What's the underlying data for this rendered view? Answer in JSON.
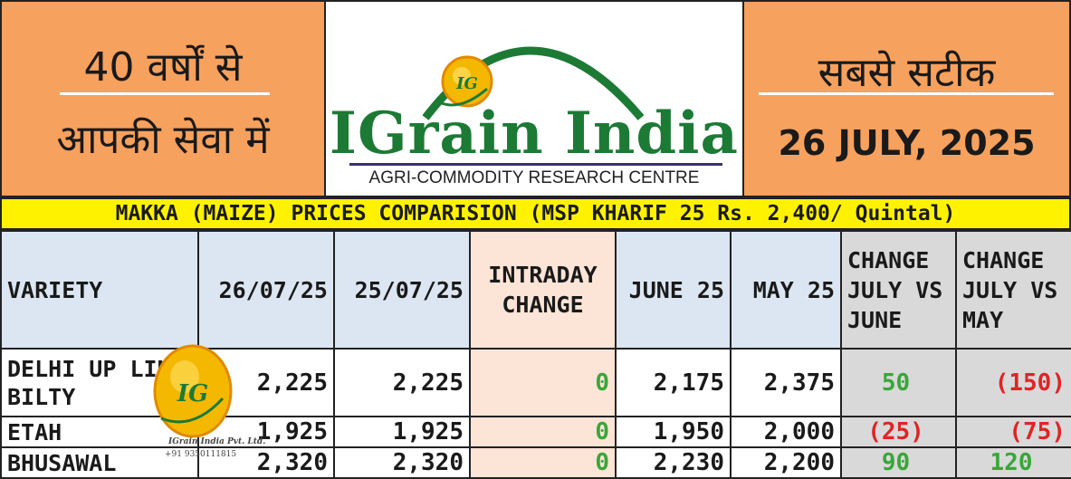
{
  "header": {
    "left_line1": "40 वर्षों से",
    "left_line2": "आपकी सेवा में",
    "right_line1": "सबसे सटीक",
    "date": "26 JULY, 2025"
  },
  "logo": {
    "badge_text": "IG",
    "title": "IGrain India",
    "subtitle": "AGRI-COMMODITY RESEARCH CENTRE"
  },
  "banner": "MAKKA (MAIZE) PRICES COMPARISION (MSP KHARIF 25 Rs. 2,400/ Quintal)",
  "table": {
    "headers": [
      "VARIETY",
      "26/07/25",
      "25/07/25",
      "INTRADAY CHANGE",
      "JUNE 25",
      "MAY 25",
      "CHANGE JULY VS JUNE",
      "CHANGE JULY VS MAY"
    ],
    "rows": [
      {
        "variety": "DELHI UP LINE BILTY",
        "d1": "2,225",
        "d2": "2,225",
        "intraday": "0",
        "june": "2,175",
        "may": "2,375",
        "chg_june": "50",
        "chg_may": "(150)"
      },
      {
        "variety": "ETAH",
        "d1": "1,925",
        "d2": "1,925",
        "intraday": "0",
        "june": "1,950",
        "may": "2,000",
        "chg_june": "(25)",
        "chg_may": "(75)"
      },
      {
        "variety": "BHUSAWAL",
        "d1": "2,320",
        "d2": "2,320",
        "intraday": "0",
        "june": "2,230",
        "may": "2,200",
        "chg_june": "90",
        "chg_may": "120"
      }
    ]
  },
  "watermark": {
    "badge_text": "IG",
    "company": "IGrain India Pvt. Ltd.",
    "phone": "+91 9350111815"
  },
  "colors": {
    "header_orange": "#f6a15e",
    "brand_green": "#1c7a35",
    "banner_yellow": "#fff200",
    "header_blue": "#dce6f2",
    "intraday_peach": "#fce4d6",
    "change_grey": "#d9d9d9",
    "positive_green": "#3aa63a",
    "negative_red": "#e02424"
  }
}
